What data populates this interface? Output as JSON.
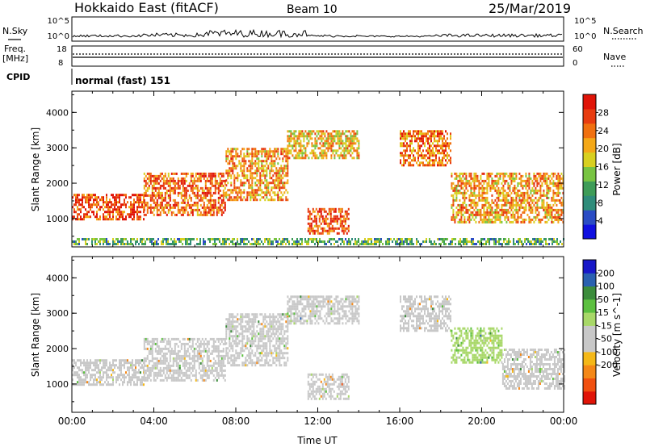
{
  "header": {
    "station": "Hokkaido East (fitACF)",
    "beam": "Beam 10",
    "date": "25/Mar/2019"
  },
  "scan_panels": {
    "nsky_label": "N.Sky",
    "nsky_ticks": [
      "10^5",
      "10^0"
    ],
    "nsearch_label": "N.Search",
    "nsearch_ticks": [
      "10^5",
      "10^0"
    ],
    "freq_label_line1": "Freq.",
    "freq_label_line2": "[MHz]",
    "freq_ticks": [
      "18",
      "8"
    ],
    "nave_label": "Nave",
    "nave_ticks": [
      "60",
      "0"
    ],
    "cpid_label": "CPID",
    "cpid_text": "normal (fast) 151"
  },
  "chart_data": [
    {
      "type": "heatmap",
      "panel": "power",
      "ylabel": "Slant Range [km]",
      "xlabel": "",
      "ylim": [
        200,
        4600
      ],
      "yticks": [
        "1000",
        "2000",
        "3000",
        "4000"
      ],
      "xticks": [],
      "colorbar": {
        "label": "Power [dB]",
        "range": [
          0,
          32
        ],
        "tick_labels": [
          "4",
          "8",
          "12",
          "16",
          "20",
          "24",
          "28"
        ],
        "colors": [
          "#1010e0",
          "#2a4cc4",
          "#2f8c7a",
          "#3e9c58",
          "#78c442",
          "#d8d020",
          "#f4a818",
          "#f07010",
          "#e83c10",
          "#e01408"
        ]
      },
      "echo_regions": [
        {
          "t_start": 0.0,
          "t_end": 3.5,
          "r_low": 950,
          "r_high": 1700,
          "power_db": 27
        },
        {
          "t_start": 3.5,
          "t_end": 7.5,
          "r_low": 1100,
          "r_high": 2300,
          "power_db": 25
        },
        {
          "t_start": 7.5,
          "t_end": 10.5,
          "r_low": 1500,
          "r_high": 3000,
          "power_db": 22
        },
        {
          "t_start": 10.5,
          "t_end": 14.0,
          "r_low": 2700,
          "r_high": 3500,
          "power_db": 20
        },
        {
          "t_start": 11.5,
          "t_end": 13.5,
          "r_low": 550,
          "r_high": 1300,
          "power_db": 26
        },
        {
          "t_start": 16.0,
          "t_end": 18.5,
          "r_low": 2500,
          "r_high": 3500,
          "power_db": 24
        },
        {
          "t_start": 18.5,
          "t_end": 24.0,
          "r_low": 900,
          "r_high": 2300,
          "power_db": 22
        },
        {
          "t_start": 0.0,
          "t_end": 24.0,
          "r_low": 250,
          "r_high": 450,
          "power_db": 12
        }
      ]
    },
    {
      "type": "heatmap",
      "panel": "velocity",
      "ylabel": "Slant Range [km]",
      "xlabel": "Time UT",
      "ylim": [
        200,
        4600
      ],
      "yticks": [
        "1000",
        "2000",
        "3000",
        "4000"
      ],
      "xticks": [
        "00:00",
        "04:00",
        "08:00",
        "12:00",
        "16:00",
        "20:00",
        "00:00"
      ],
      "colorbar": {
        "label": "Velocity [m s^-1]",
        "range": [
          -250,
          250
        ],
        "tick_labels": [
          "200",
          "100",
          "50",
          "15",
          "-15",
          "-50",
          "-100",
          "-200"
        ],
        "colors": [
          "#e01408",
          "#f05010",
          "#f48818",
          "#f4b818",
          "#c8c8c8",
          "#c8c8c8",
          "#a8d868",
          "#5cc040",
          "#3c8c3c",
          "#2a60b0",
          "#1818c8"
        ]
      },
      "echo_regions": [
        {
          "t_start": 0.0,
          "t_end": 3.5,
          "r_low": 950,
          "r_high": 1700,
          "velocity": 0
        },
        {
          "t_start": 3.5,
          "t_end": 7.5,
          "r_low": 1100,
          "r_high": 2300,
          "velocity": 0
        },
        {
          "t_start": 7.5,
          "t_end": 10.5,
          "r_low": 1500,
          "r_high": 3000,
          "velocity": 0
        },
        {
          "t_start": 10.5,
          "t_end": 14.0,
          "r_low": 2700,
          "r_high": 3500,
          "velocity": 0
        },
        {
          "t_start": 11.5,
          "t_end": 13.5,
          "r_low": 550,
          "r_high": 1300,
          "velocity": -40
        },
        {
          "t_start": 16.0,
          "t_end": 18.5,
          "r_low": 2500,
          "r_high": 3500,
          "velocity": 0
        },
        {
          "t_start": 18.5,
          "t_end": 21.0,
          "r_low": 1600,
          "r_high": 2600,
          "velocity": 55
        },
        {
          "t_start": 21.0,
          "t_end": 24.0,
          "r_low": 900,
          "r_high": 2000,
          "velocity": 0
        }
      ]
    }
  ]
}
